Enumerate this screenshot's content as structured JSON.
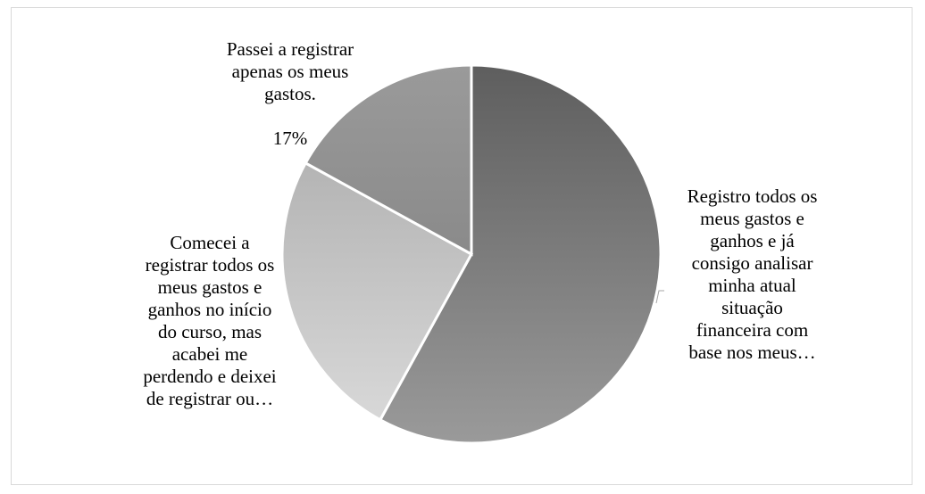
{
  "chart_data": {
    "type": "pie",
    "title": "",
    "slices": [
      {
        "label": "Registro todos os\nmeus gastos e\nganhos e já\nconsigo analisar\nminha atual\nsituação\nfinanceira com\nbase nos meus…",
        "value": 58,
        "value_label": "",
        "color": "#7a7a7a"
      },
      {
        "label": "Comecei a\nregistrar todos os\nmeus gastos e\nganhos no início\ndo curso, mas\nacabei me\nperdendo e deixei\nde registrar ou…",
        "value": 25,
        "value_label": "",
        "color": "#c8c8c8"
      },
      {
        "label": "Passei a registrar\napenas os meus\ngastos.",
        "value": 17,
        "value_label": "17%",
        "color": "#a3a3a3"
      }
    ],
    "legend": "none",
    "start_angle_deg": 0,
    "direction": "clockwise"
  }
}
